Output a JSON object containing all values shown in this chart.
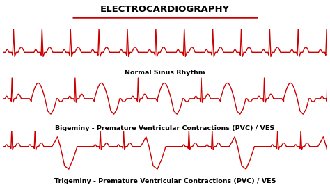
{
  "title": "ELECTROCARDIOGRAPHY",
  "title_color": "#000000",
  "title_fontsize": 9.5,
  "ecg_color": "#cc0000",
  "line_width": 1.0,
  "background_color": "#ffffff",
  "label1": "Normal Sinus Rhythm",
  "label2": "Bigeminy - Premature Ventricular Contractions (PVC) / VES",
  "label3": "Trigeminy - Premature Ventricular Contractions (PVC) / VES",
  "label_fontsize": 6.8,
  "underline_color": "#cc0000"
}
